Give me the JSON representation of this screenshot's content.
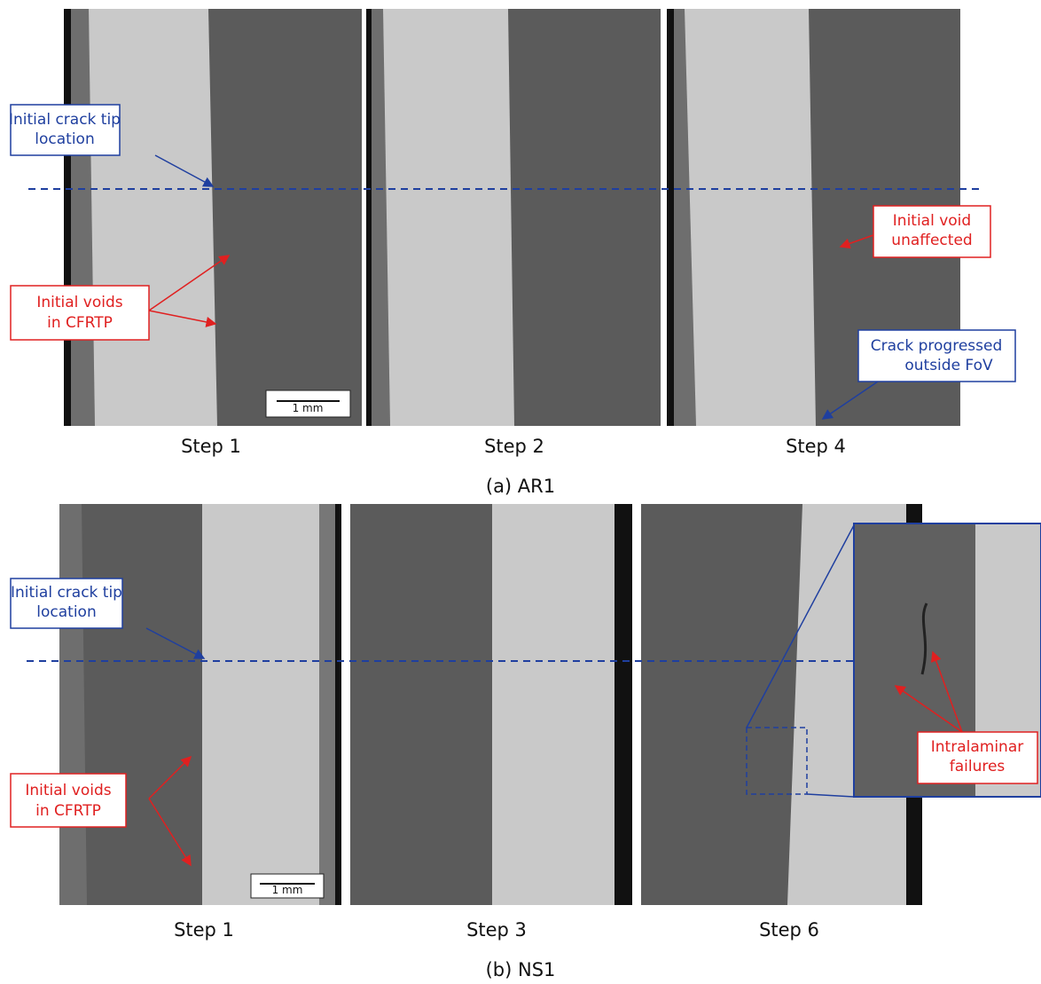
{
  "panel_a": {
    "caption": "(a) AR1",
    "images": [
      {
        "caption": "Step 1"
      },
      {
        "caption": "Step 2"
      },
      {
        "caption": "Step 4"
      }
    ],
    "scale_bar": "1 mm",
    "annotations": [
      {
        "lines": [
          "Initial crack tip",
          "location"
        ]
      },
      {
        "lines": [
          "Initial voids",
          "in CFRTP"
        ]
      },
      {
        "lines": [
          "Initial void",
          "unaffected"
        ]
      },
      {
        "lines": [
          "Crack progressed",
          "outside FoV"
        ]
      }
    ]
  },
  "panel_b": {
    "caption": "(b) NS1",
    "images": [
      {
        "caption": "Step 1"
      },
      {
        "caption": "Step 3"
      },
      {
        "caption": "Step 6"
      }
    ],
    "scale_bar": "1 mm",
    "annotations": [
      {
        "lines": [
          "Initial crack tip",
          "location"
        ]
      },
      {
        "lines": [
          "Initial voids",
          "in CFRTP"
        ]
      },
      {
        "lines": [
          "Intralaminar",
          "failures"
        ]
      }
    ]
  }
}
